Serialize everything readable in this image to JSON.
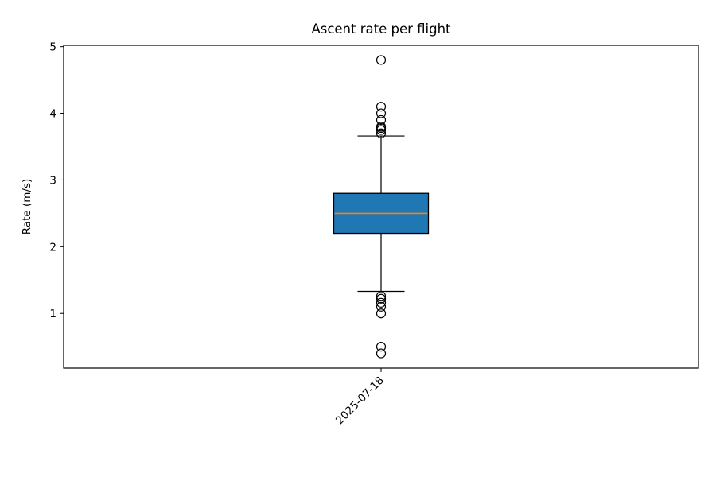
{
  "chart_data": {
    "type": "box",
    "title": "Ascent rate per flight",
    "xlabel": "",
    "ylabel": "Rate (m/s)",
    "ylim": [
      0.18,
      5.02
    ],
    "yticks": [
      1,
      2,
      3,
      4,
      5
    ],
    "ytick_labels": [
      "1",
      "2",
      "3",
      "4",
      "5"
    ],
    "categories": [
      "2025-07-18"
    ],
    "grid": false,
    "legend": null,
    "boxes": [
      {
        "category": "2025-07-18",
        "q1": 2.2,
        "median": 2.5,
        "q3": 2.8,
        "whisker_low": 1.33,
        "whisker_high": 3.66,
        "outliers": [
          4.8,
          4.1,
          4.0,
          3.9,
          3.8,
          3.78,
          3.75,
          3.7,
          1.26,
          1.22,
          1.16,
          1.1,
          1.0,
          0.5,
          0.4
        ]
      }
    ],
    "colors": {
      "box_fill": "#1f77b4",
      "median_line": "#ff7f0e",
      "edges": "#000000"
    }
  }
}
